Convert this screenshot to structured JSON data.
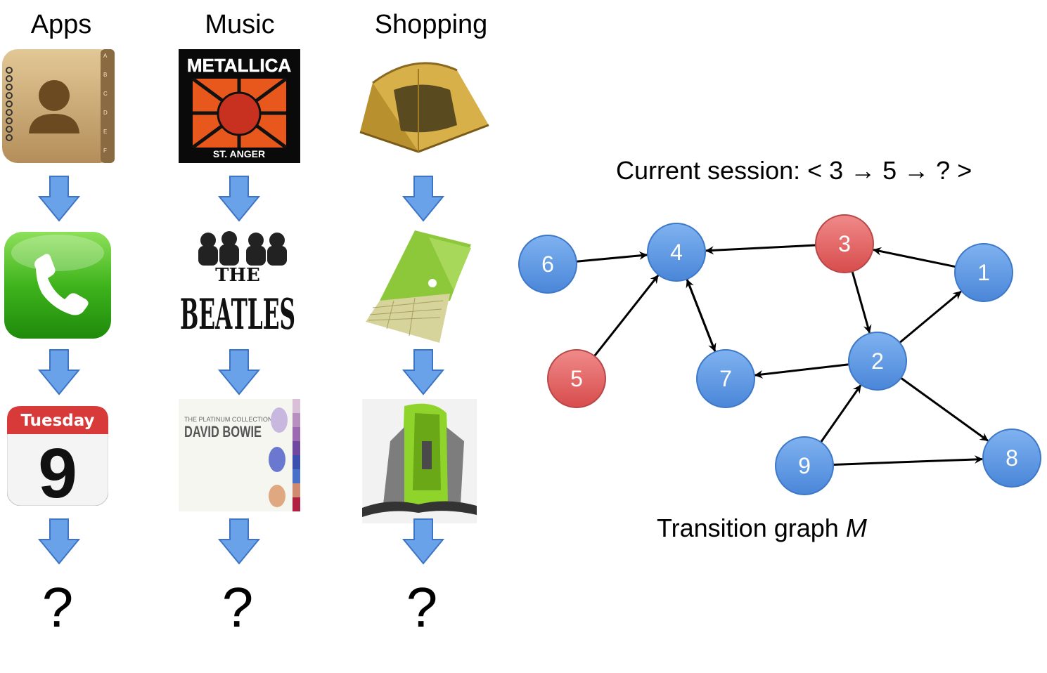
{
  "columns": [
    {
      "title": "Apps",
      "sequence": [
        "contacts-icon",
        "phone-icon",
        "calendar-icon"
      ],
      "next": "?"
    },
    {
      "title": "Music",
      "sequence": [
        "metallica-album",
        "beatles-album",
        "bowie-album"
      ],
      "next": "?"
    },
    {
      "title": "Shopping",
      "sequence": [
        "tent",
        "sleeping-bag",
        "backpack"
      ],
      "next": "?"
    }
  ],
  "calendar": {
    "day": "Tuesday",
    "date": "9"
  },
  "albums": {
    "metallica": {
      "band": "METALLICA",
      "title": "ST. ANGER"
    },
    "beatles": {
      "the": "THE",
      "name": "BEATLES"
    },
    "bowie": {
      "subtitle": "THE PLATINUM COLLECTION",
      "artist": "DAVID BOWIE"
    }
  },
  "contacts_tabs": [
    "A",
    "B",
    "C",
    "D",
    "E",
    "F"
  ],
  "session_text": "Current session: < 3 → 5 → ? >",
  "graph": {
    "caption": "Transition graph",
    "caption_symbol": "M",
    "nodes": [
      {
        "id": "1",
        "highlighted": false
      },
      {
        "id": "2",
        "highlighted": false
      },
      {
        "id": "3",
        "highlighted": true
      },
      {
        "id": "4",
        "highlighted": false
      },
      {
        "id": "5",
        "highlighted": true
      },
      {
        "id": "6",
        "highlighted": false
      },
      {
        "id": "7",
        "highlighted": false
      },
      {
        "id": "8",
        "highlighted": false
      },
      {
        "id": "9",
        "highlighted": false
      }
    ],
    "edges": [
      {
        "from": "6",
        "to": "4"
      },
      {
        "from": "3",
        "to": "4"
      },
      {
        "from": "1",
        "to": "3"
      },
      {
        "from": "5",
        "to": "4"
      },
      {
        "from": "4",
        "to": "7"
      },
      {
        "from": "7",
        "to": "4"
      },
      {
        "from": "3",
        "to": "2"
      },
      {
        "from": "2",
        "to": "1"
      },
      {
        "from": "2",
        "to": "7"
      },
      {
        "from": "2",
        "to": "8"
      },
      {
        "from": "9",
        "to": "2"
      },
      {
        "from": "9",
        "to": "8"
      }
    ]
  },
  "colors": {
    "node_blue": "#5b95e0",
    "node_red": "#e06060",
    "arrow_blue": "#6aa2ea"
  }
}
